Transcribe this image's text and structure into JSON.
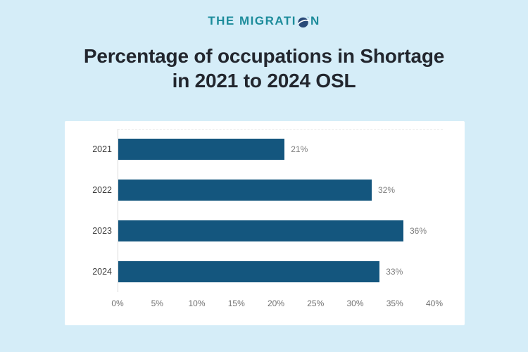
{
  "page": {
    "background": "#d5edf8"
  },
  "logo": {
    "text_before": "THE MIGRATI",
    "text_after": "N",
    "icon": "globe-orbit-icon",
    "color": "#1c8c9b"
  },
  "title": {
    "line1": "Percentage of occupations in Shortage",
    "line2": "in 2021 to 2024 OSL"
  },
  "chart_data": {
    "type": "bar",
    "orientation": "horizontal",
    "title": "Percentage of occupations in Shortage in 2021 to 2024 OSL",
    "categories": [
      "2021",
      "2022",
      "2023",
      "2024"
    ],
    "values": [
      21,
      32,
      36,
      33
    ],
    "value_labels": [
      "21%",
      "32%",
      "36%",
      "33%"
    ],
    "x_ticks": [
      "0%",
      "5%",
      "10%",
      "15%",
      "20%",
      "25%",
      "30%",
      "35%",
      "40%"
    ],
    "x_tick_values": [
      0,
      5,
      10,
      15,
      20,
      25,
      30,
      35,
      40
    ],
    "xlim": [
      0,
      40
    ],
    "xlabel": "",
    "ylabel": "",
    "grid": false,
    "legend": false,
    "bar_color": "#14567e",
    "value_label_color": "#7e7e7e",
    "tick_label_color": "#707070"
  }
}
